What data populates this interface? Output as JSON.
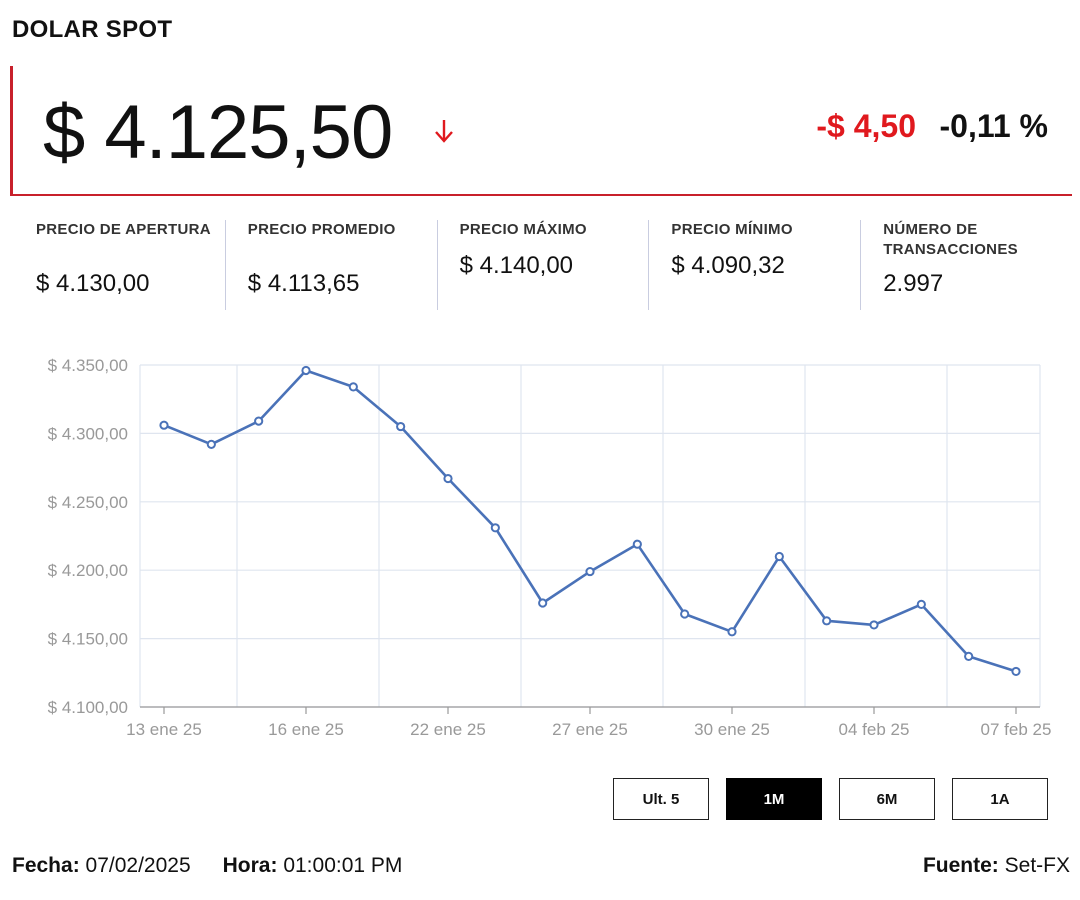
{
  "header": {
    "title": "DOLAR SPOT"
  },
  "price": {
    "value": "$ 4.125,50",
    "direction_icon": "arrow-down-icon",
    "change": "-$ 4,50",
    "change_pct": "-0,11 %",
    "down_color": "#e0191e",
    "accent": "#c8202b"
  },
  "stats": [
    {
      "label": "PRECIO DE APERTURA",
      "value": "$ 4.130,00"
    },
    {
      "label": "PRECIO PROMEDIO",
      "value": "$ 4.113,65"
    },
    {
      "label": "PRECIO MÁXIMO",
      "value": "$ 4.140,00"
    },
    {
      "label": "PRECIO MÍNIMO",
      "value": "$ 4.090,32"
    },
    {
      "label": "NÚMERO DE TRANSACCIONES",
      "value": "2.997"
    }
  ],
  "chart_data": {
    "type": "line",
    "line_color": "#4a72b8",
    "grid": true,
    "ylim": [
      4100,
      4350
    ],
    "yticks": [
      4100,
      4150,
      4200,
      4250,
      4300,
      4350
    ],
    "ytick_labels": [
      "$ 4.100,00",
      "$ 4.150,00",
      "$ 4.200,00",
      "$ 4.250,00",
      "$ 4.300,00",
      "$ 4.350,00"
    ],
    "xtick_labels": [
      "13 ene 25",
      "16 ene 25",
      "22 ene 25",
      "27 ene 25",
      "30 ene 25",
      "04 feb 25",
      "07 feb 25"
    ],
    "xtick_indices": [
      0,
      3,
      6,
      9,
      12,
      15,
      18
    ],
    "series": [
      {
        "values": [
          4306,
          4292,
          4309,
          4346,
          4334,
          4305,
          4267,
          4231,
          4176,
          4199,
          4219,
          4168,
          4155,
          4210,
          4163,
          4160,
          4175,
          4137,
          4126
        ]
      }
    ]
  },
  "range_buttons": [
    {
      "label": "Ult. 5",
      "active": false
    },
    {
      "label": "1M",
      "active": true
    },
    {
      "label": "6M",
      "active": false
    },
    {
      "label": "1A",
      "active": false
    }
  ],
  "footer": {
    "date_label": "Fecha:",
    "date": "07/02/2025",
    "time_label": "Hora:",
    "time": "01:00:01 PM",
    "source_label": "Fuente:",
    "source": "Set-FX"
  }
}
